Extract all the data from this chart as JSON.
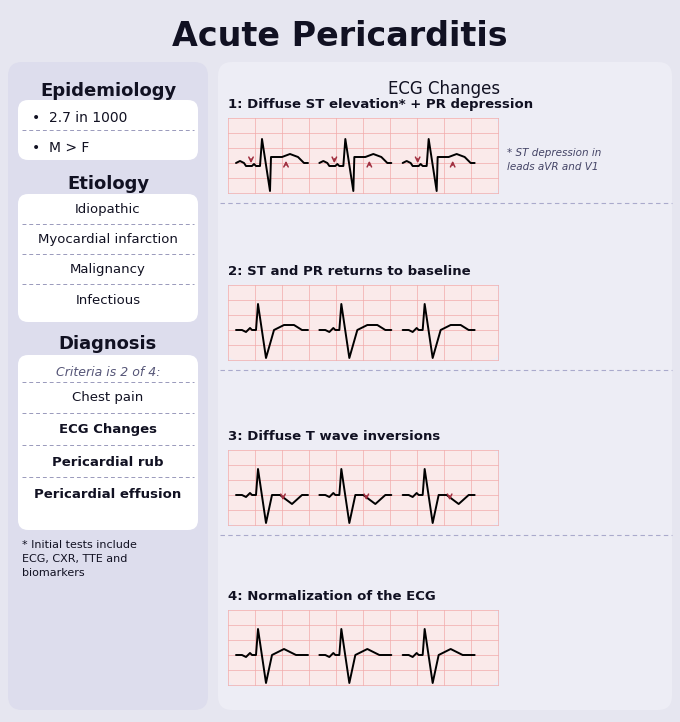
{
  "title": "Acute Pericarditis",
  "bg_color": "#e6e6f0",
  "left_panel_color": "#dddded",
  "white_box_color": "#ffffff",
  "right_panel_color": "#ededf5",
  "ecg_bg": "#faeaea",
  "ecg_grid": "#f2aaaa",
  "title_fontsize": 24,
  "section_headers": [
    "Epidemiology",
    "Etiology",
    "Diagnosis"
  ],
  "epi_items": [
    "2.7 in 1000",
    "M > F"
  ],
  "etiology_items": [
    "Idiopathic",
    "Myocardial infarction",
    "Malignancy",
    "Infectious"
  ],
  "diagnosis_criteria": "Criteria is 2 of 4:",
  "diagnosis_items": [
    "Chest pain",
    "ECG Changes",
    "Pericardial rub",
    "Pericardial effusion"
  ],
  "diagnosis_bold": [
    "ECG Changes",
    "Pericardial rub",
    "Pericardial effusion"
  ],
  "diagnosis_note": "* Initial tests include\nECG, CXR, TTE and\nbiomarkers",
  "ecg_header": "ECG Changes",
  "ecg_stages": [
    "1: Diffuse ST elevation* + PR depression",
    "2: ST and PR returns to baseline",
    "3: Diffuse T wave inversions",
    "4: Normalization of the ECG"
  ],
  "ecg_note": "* ST depression in\nleads aVR and V1",
  "arrow_color": "#a03040",
  "text_dark": "#111122",
  "sep_color": "#aaaacc",
  "dashed_color": "#9999bb"
}
